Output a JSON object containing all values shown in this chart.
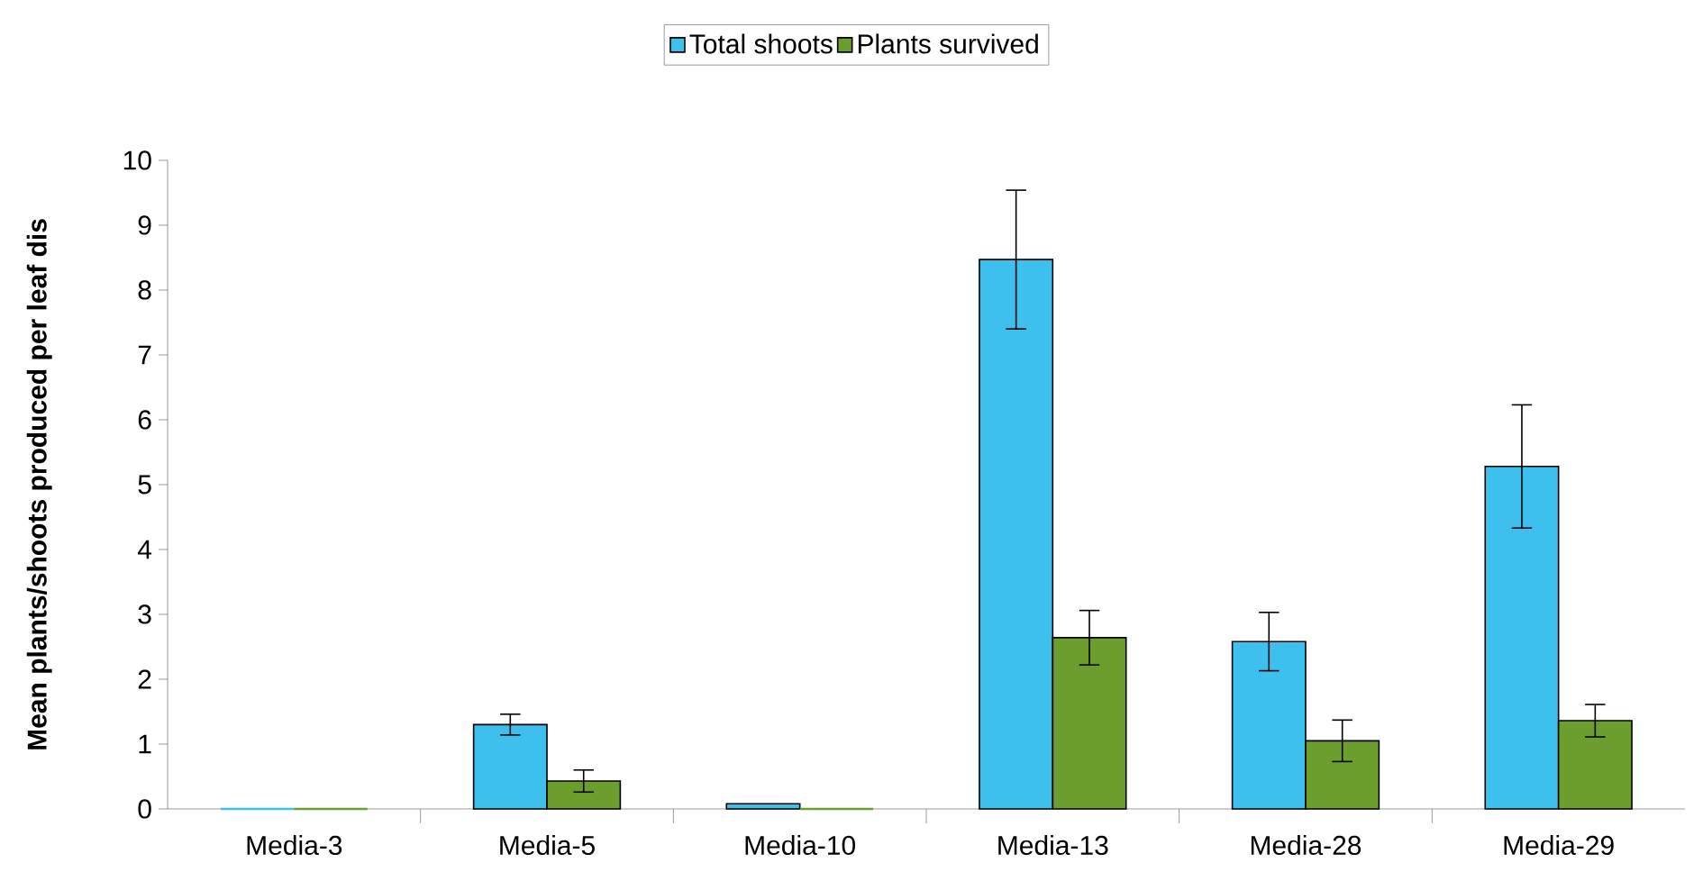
{
  "chart_data": {
    "type": "bar",
    "ylabel": "Mean plants/shoots produced per leaf dis",
    "categories": [
      "Media-3",
      "Media-5",
      "Media-10",
      "Media-13",
      "Media-28",
      "Media-29"
    ],
    "series": [
      {
        "name": "Total shoots",
        "color": "#3ec0ee",
        "values": [
          0,
          1.3,
          0.08,
          8.47,
          2.58,
          5.28
        ],
        "errors": [
          null,
          0.16,
          null,
          1.07,
          0.45,
          0.95
        ]
      },
      {
        "name": "Plants survived",
        "color": "#6c9e2e",
        "values": [
          0,
          0.43,
          0,
          2.64,
          1.05,
          1.36
        ],
        "errors": [
          null,
          0.17,
          null,
          0.42,
          0.32,
          0.25
        ]
      }
    ],
    "ylim": [
      0,
      10
    ],
    "yticks": [
      0,
      1,
      2,
      3,
      4,
      5,
      6,
      7,
      8,
      9,
      10
    ],
    "grid": false,
    "legend": "top"
  }
}
